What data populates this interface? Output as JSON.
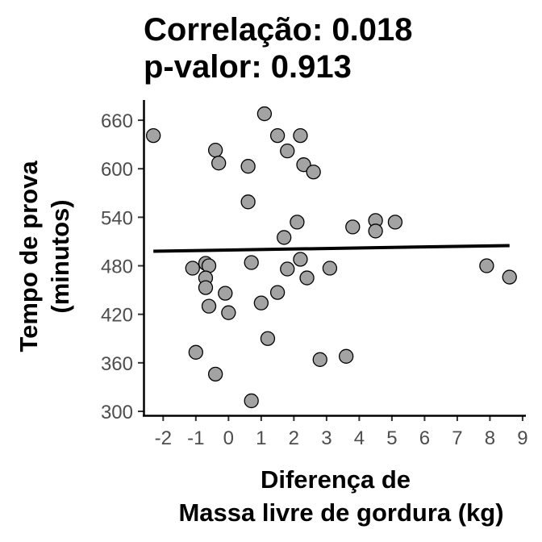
{
  "chart_data": {
    "type": "scatter",
    "title_lines": [
      "Correlação: 0.018",
      "p-valor: 0.913"
    ],
    "xlabel_lines": [
      "Diferença de",
      "Massa livre de gordura (kg)"
    ],
    "ylabel_lines": [
      "Tempo de prova",
      "(minutos)"
    ],
    "xlim": [
      -2.6,
      9.1
    ],
    "ylim": [
      295,
      685
    ],
    "x_ticks": [
      -2,
      -1,
      0,
      1,
      2,
      3,
      4,
      5,
      6,
      7,
      8,
      9
    ],
    "y_ticks": [
      300,
      360,
      420,
      480,
      540,
      600,
      660
    ],
    "grid": false,
    "legend": "none",
    "point_color": "#a3a3a3",
    "point_edge_color": "#000000",
    "trend_line": {
      "x": [
        -2.3,
        8.6
      ],
      "y": [
        498,
        505
      ],
      "color": "#000000"
    },
    "points": [
      {
        "x": -2.3,
        "y": 641
      },
      {
        "x": 1.1,
        "y": 668
      },
      {
        "x": 1.5,
        "y": 641
      },
      {
        "x": 2.2,
        "y": 641
      },
      {
        "x": -0.4,
        "y": 623
      },
      {
        "x": 1.8,
        "y": 622
      },
      {
        "x": -0.3,
        "y": 607
      },
      {
        "x": 0.6,
        "y": 603
      },
      {
        "x": 2.3,
        "y": 605
      },
      {
        "x": 2.6,
        "y": 596
      },
      {
        "x": 0.6,
        "y": 559
      },
      {
        "x": 2.1,
        "y": 534
      },
      {
        "x": 4.5,
        "y": 536
      },
      {
        "x": 5.1,
        "y": 534
      },
      {
        "x": 3.8,
        "y": 528
      },
      {
        "x": 4.5,
        "y": 523
      },
      {
        "x": 1.7,
        "y": 515
      },
      {
        "x": -1.1,
        "y": 477
      },
      {
        "x": -0.7,
        "y": 483
      },
      {
        "x": -0.6,
        "y": 480
      },
      {
        "x": 0.7,
        "y": 484
      },
      {
        "x": 1.8,
        "y": 476
      },
      {
        "x": 2.2,
        "y": 488
      },
      {
        "x": 3.1,
        "y": 477
      },
      {
        "x": 7.9,
        "y": 480
      },
      {
        "x": 8.6,
        "y": 466
      },
      {
        "x": -0.7,
        "y": 465
      },
      {
        "x": 2.4,
        "y": 465
      },
      {
        "x": -0.7,
        "y": 453
      },
      {
        "x": -0.1,
        "y": 446
      },
      {
        "x": 1.5,
        "y": 447
      },
      {
        "x": 1.0,
        "y": 434
      },
      {
        "x": -0.6,
        "y": 430
      },
      {
        "x": 0.0,
        "y": 422
      },
      {
        "x": 1.2,
        "y": 390
      },
      {
        "x": -1.0,
        "y": 373
      },
      {
        "x": 2.8,
        "y": 364
      },
      {
        "x": 3.6,
        "y": 368
      },
      {
        "x": -0.4,
        "y": 346
      },
      {
        "x": 0.7,
        "y": 313
      }
    ]
  }
}
